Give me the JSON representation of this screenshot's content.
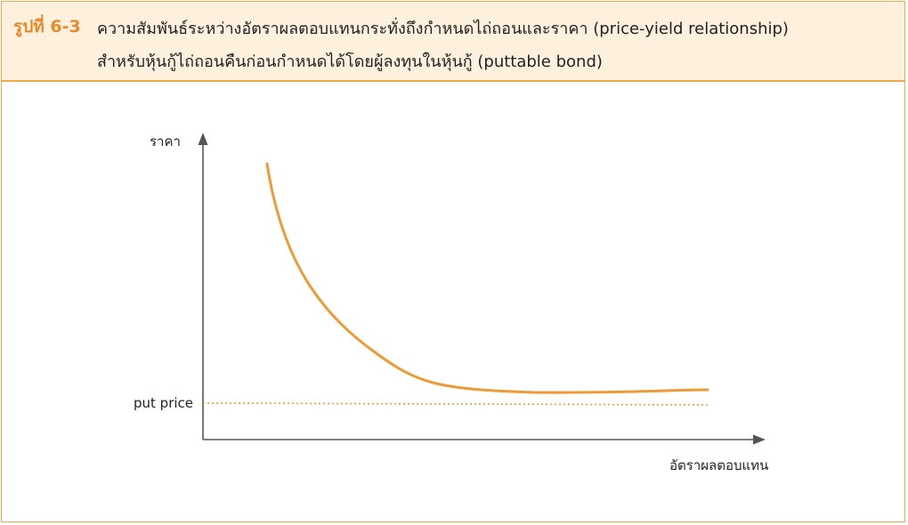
{
  "figure": {
    "label": "รูปที่ 6-3",
    "caption_line1": "ความสัมพันธ์ระหว่างอัตราผลตอบแทนกระทั่งถึงกำหนดไถ่ถอนและราคา (price-yield relationship)",
    "caption_line2": "สำหรับหุ้นกู้ไถ่ถอนคืนก่อนกำหนดได้โดยผู้ลงทุนในหุ้นกู้ (puttable bond)"
  },
  "diagram": {
    "y_axis_label": "ราคา",
    "x_axis_label": "อัตราผลตอบแทน",
    "reference_line_label": "put price",
    "colors": {
      "curve": "#ee9a35",
      "reference_line": "#ee9a35",
      "axes": "#555555",
      "accent": "#e8892a",
      "header_background": "#fdf1dd"
    }
  }
}
